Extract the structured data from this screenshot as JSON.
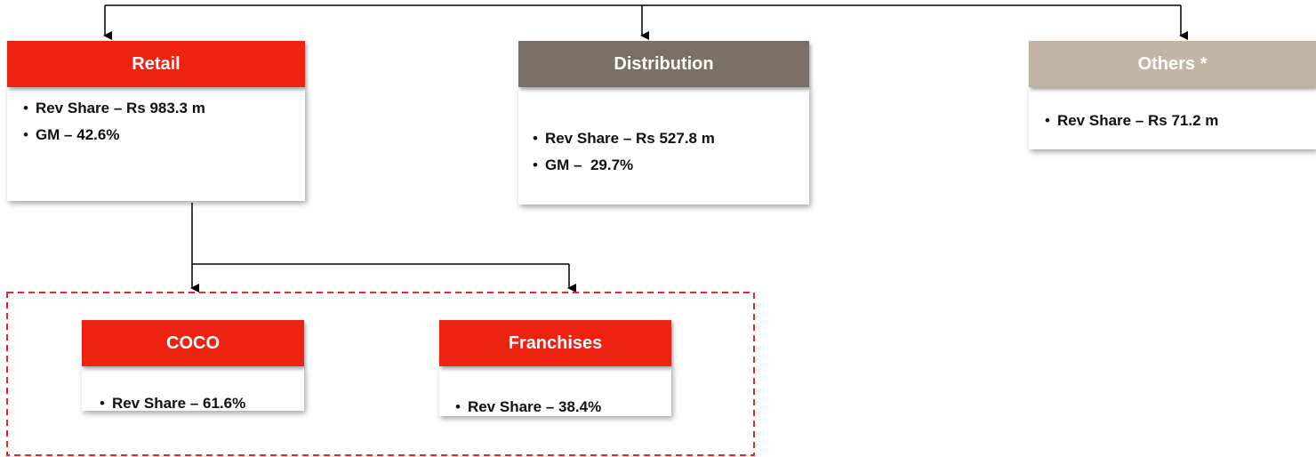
{
  "nodes": [
    {
      "label": "Retail",
      "bullets": [
        "Rev Share – Rs 983.3 m",
        "GM – 42.6%"
      ]
    },
    {
      "label": "Distribution",
      "bullets": [
        "Rev Share – Rs 527.8 m",
        "GM –  29.7%"
      ]
    },
    {
      "label": "Others *",
      "bullets": [
        "Rev Share – Rs 71.2 m"
      ]
    },
    {
      "label": "COCO",
      "bullets": [
        "Rev Share – 61.6%"
      ]
    },
    {
      "label": "Franchises",
      "bullets": [
        "Rev Share – 38.4%"
      ]
    }
  ]
}
